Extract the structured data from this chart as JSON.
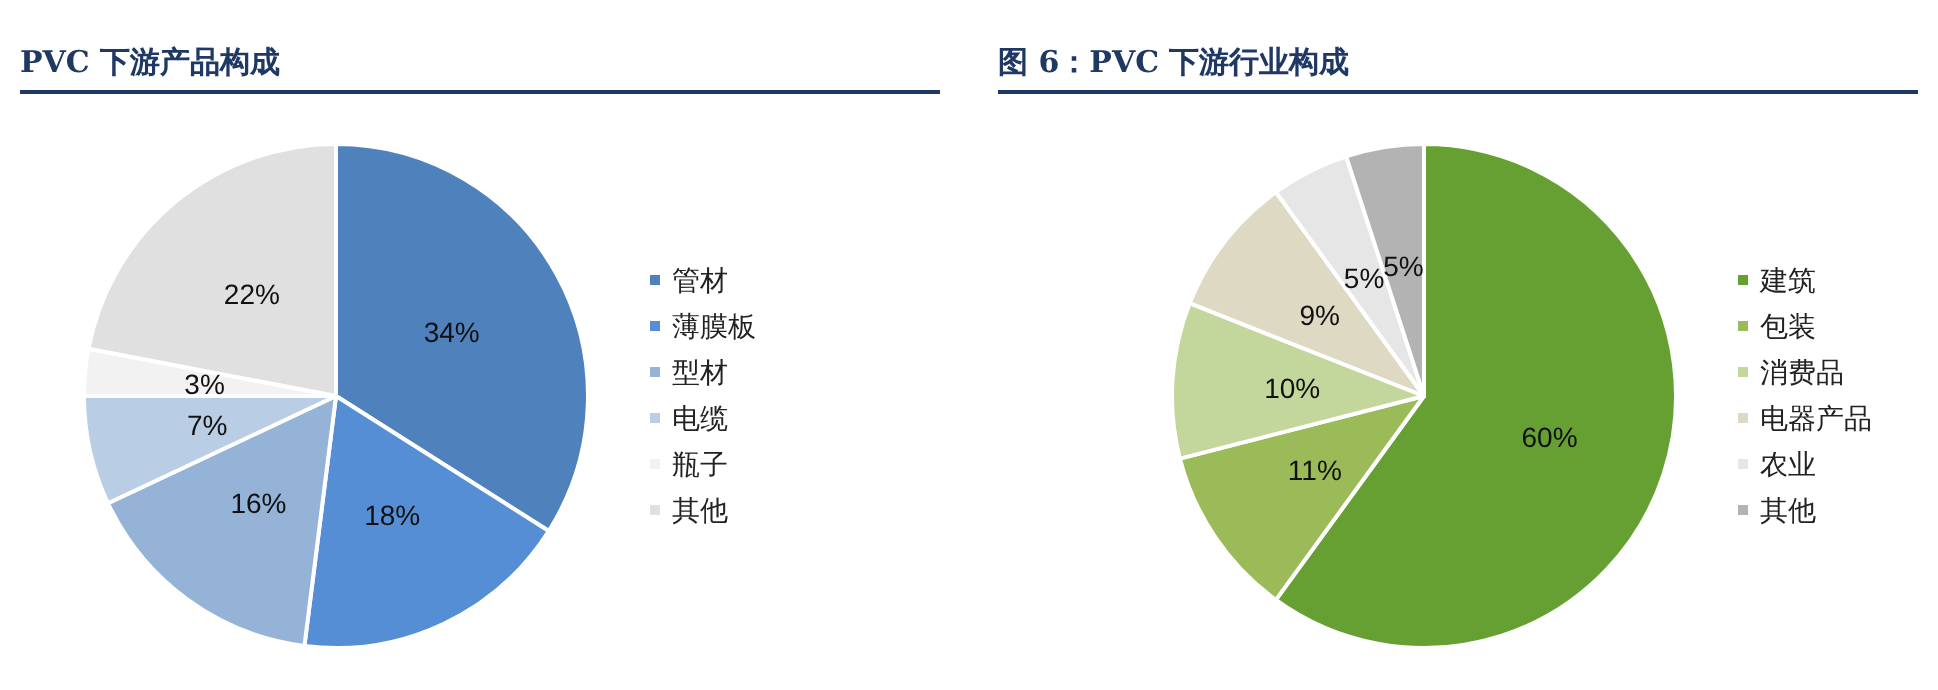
{
  "chart_data": [
    {
      "type": "pie",
      "title": "PVC 下游产品构成",
      "categories": [
        "管材",
        "薄膜板",
        "型材",
        "电缆",
        "瓶子",
        "其他"
      ],
      "values": [
        34,
        18,
        16,
        7,
        3,
        22
      ],
      "value_labels": [
        "34%",
        "18%",
        "16%",
        "7%",
        "3%",
        "22%"
      ],
      "colors": [
        "#4f81bd",
        "#558ed5",
        "#95b3d7",
        "#b9cde5",
        "#f2f2f2",
        "#e0e0e0"
      ],
      "legend": "right"
    },
    {
      "type": "pie",
      "title": "图 6：PVC 下游行业构成",
      "categories": [
        "建筑",
        "包装",
        "消费品",
        "电器产品",
        "农业",
        "其他"
      ],
      "values": [
        60,
        11,
        10,
        9,
        5,
        5
      ],
      "value_labels": [
        "60%",
        "11%",
        "10%",
        "9%",
        "5%",
        "5%"
      ],
      "colors": [
        "#66a033",
        "#9bbb59",
        "#c3d69b",
        "#ddd9c3",
        "#e6e6e6",
        "#b3b3b3"
      ],
      "legend": "right"
    }
  ]
}
